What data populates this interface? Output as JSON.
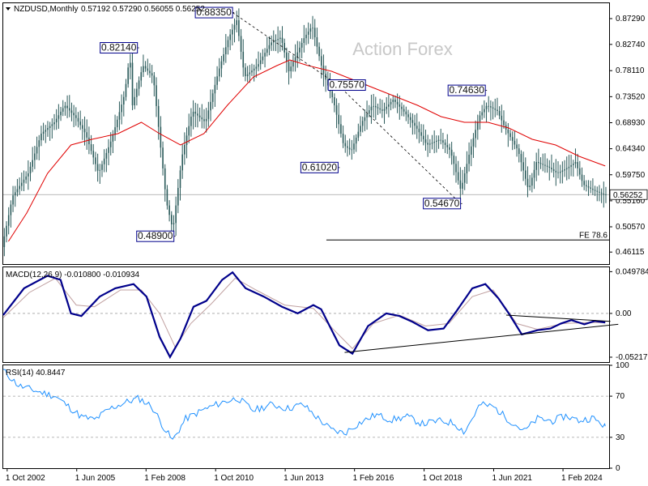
{
  "header": {
    "symbol_timeframe": "NZDUSD,Monthly",
    "ohlc": "0.57192 0.57290 0.56055 0.56252"
  },
  "watermark": "Action Forex",
  "colors": {
    "candle": "#2a5a5a",
    "ma": "#e00000",
    "macd": "#00008b",
    "signal": "#c0a0a0",
    "rsi": "#1e90ff",
    "trendline": "#000000",
    "grid": "#a0a0a0"
  },
  "chart_data": [
    {
      "type": "bar",
      "title": "NZDUSD,Monthly",
      "ylim": [
        0.44,
        0.9
      ],
      "y_ticks": [
        "0.87290",
        "0.82740",
        "0.78110",
        "0.73520",
        "0.68930",
        "0.64340",
        "0.59750",
        "0.55160",
        "0.50570",
        "0.46115"
      ],
      "y_tick_values": [
        0.8729,
        0.8274,
        0.7811,
        0.7352,
        0.6893,
        0.6434,
        0.5975,
        0.5516,
        0.5057,
        0.46115
      ],
      "x_ticks": [
        "1 Oct 2002",
        "1 Jun 2005",
        "1 Feb 2008",
        "1 Oct 2010",
        "1 Jun 2013",
        "1 Feb 2016",
        "1 Oct 2018",
        "1 Jun 2021",
        "1 Feb 2024"
      ],
      "x_tick_values": [
        2002.75,
        2005.42,
        2008.08,
        2010.75,
        2013.42,
        2016.08,
        2018.75,
        2021.42,
        2024.08
      ],
      "xlim": [
        2002.6,
        2025.85
      ],
      "price_path": [
        [
          2002.6,
          0.47
        ],
        [
          2003.0,
          0.56
        ],
        [
          2003.6,
          0.6
        ],
        [
          2004.1,
          0.67
        ],
        [
          2004.6,
          0.69
        ],
        [
          2005.0,
          0.72
        ],
        [
          2005.4,
          0.7
        ],
        [
          2005.8,
          0.67
        ],
        [
          2006.3,
          0.6
        ],
        [
          2006.8,
          0.66
        ],
        [
          2007.3,
          0.74
        ],
        [
          2007.5,
          0.81
        ],
        [
          2007.6,
          0.72
        ],
        [
          2008.0,
          0.79
        ],
        [
          2008.4,
          0.77
        ],
        [
          2008.9,
          0.55
        ],
        [
          2009.15,
          0.5
        ],
        [
          2009.5,
          0.63
        ],
        [
          2009.9,
          0.71
        ],
        [
          2010.4,
          0.69
        ],
        [
          2010.9,
          0.78
        ],
        [
          2011.3,
          0.84
        ],
        [
          2011.6,
          0.87
        ],
        [
          2011.9,
          0.77
        ],
        [
          2012.4,
          0.79
        ],
        [
          2012.9,
          0.83
        ],
        [
          2013.3,
          0.84
        ],
        [
          2013.6,
          0.78
        ],
        [
          2014.2,
          0.84
        ],
        [
          2014.5,
          0.86
        ],
        [
          2014.9,
          0.78
        ],
        [
          2015.3,
          0.73
        ],
        [
          2015.7,
          0.65
        ],
        [
          2016.0,
          0.64
        ],
        [
          2016.4,
          0.69
        ],
        [
          2016.8,
          0.72
        ],
        [
          2017.2,
          0.71
        ],
        [
          2017.6,
          0.73
        ],
        [
          2018.0,
          0.71
        ],
        [
          2018.5,
          0.68
        ],
        [
          2018.9,
          0.65
        ],
        [
          2019.4,
          0.66
        ],
        [
          2019.8,
          0.64
        ],
        [
          2020.2,
          0.57
        ],
        [
          2020.5,
          0.63
        ],
        [
          2020.9,
          0.7
        ],
        [
          2021.2,
          0.72
        ],
        [
          2021.6,
          0.71
        ],
        [
          2021.9,
          0.68
        ],
        [
          2022.4,
          0.64
        ],
        [
          2022.8,
          0.57
        ],
        [
          2023.1,
          0.62
        ],
        [
          2023.6,
          0.61
        ],
        [
          2023.9,
          0.6
        ],
        [
          2024.3,
          0.61
        ],
        [
          2024.6,
          0.62
        ],
        [
          2024.9,
          0.58
        ],
        [
          2025.3,
          0.57
        ],
        [
          2025.7,
          0.5625
        ]
      ],
      "ma_path": [
        [
          2002.8,
          0.48
        ],
        [
          2003.5,
          0.53
        ],
        [
          2004.3,
          0.6
        ],
        [
          2005.2,
          0.65
        ],
        [
          2006.0,
          0.66
        ],
        [
          2007.0,
          0.67
        ],
        [
          2007.9,
          0.69
        ],
        [
          2008.6,
          0.67
        ],
        [
          2009.4,
          0.65
        ],
        [
          2010.3,
          0.67
        ],
        [
          2011.2,
          0.72
        ],
        [
          2012.2,
          0.77
        ],
        [
          2013.1,
          0.79
        ],
        [
          2013.6,
          0.8
        ],
        [
          2014.3,
          0.79
        ],
        [
          2015.2,
          0.78
        ],
        [
          2016.3,
          0.76
        ],
        [
          2017.4,
          0.74
        ],
        [
          2018.5,
          0.72
        ],
        [
          2019.4,
          0.7
        ],
        [
          2020.3,
          0.69
        ],
        [
          2021.2,
          0.69
        ],
        [
          2022.0,
          0.68
        ],
        [
          2022.9,
          0.66
        ],
        [
          2023.8,
          0.65
        ],
        [
          2024.7,
          0.63
        ],
        [
          2025.7,
          0.613
        ]
      ],
      "annotations": [
        {
          "label": "0.82140",
          "value": 0.8214,
          "x": 2007.75
        },
        {
          "label": "0.88350",
          "value": 0.8835,
          "x": 2011.4
        },
        {
          "label": "0.48900",
          "value": 0.489,
          "x": 2009.15
        },
        {
          "label": "0.75570",
          "value": 0.7557,
          "x": 2016.5
        },
        {
          "label": "0.61020",
          "value": 0.6102,
          "x": 2015.45
        },
        {
          "label": "0.74630",
          "value": 0.7463,
          "x": 2021.1
        },
        {
          "label": "0.54670",
          "value": 0.5467,
          "x": 2020.15
        }
      ],
      "dotted_lines": [
        {
          "from": [
            2011.4,
            0.8835
          ],
          "to": [
            2015.45,
            0.7557
          ]
        },
        {
          "from": [
            2015.45,
            0.7557
          ],
          "to": [
            2020.15,
            0.5467
          ]
        }
      ],
      "current_price": {
        "label": "0.56252",
        "value": 0.56252
      },
      "fe_line": {
        "label": "FE 78.6",
        "value": 0.4825,
        "x_start": 2015.0
      }
    },
    {
      "type": "line",
      "title": "MACD(12,26,9) -0.010800 -0.010934",
      "ylim": [
        -0.058,
        0.055
      ],
      "y_ticks": [
        "0.049784",
        "0.00",
        "-0.052179"
      ],
      "y_tick_values": [
        0.049784,
        0.0,
        -0.052179
      ],
      "series": [
        {
          "role": "macd",
          "values": [
            [
              2002.6,
              -0.002
            ],
            [
              2003.4,
              0.03
            ],
            [
              2004.3,
              0.045
            ],
            [
              2004.8,
              0.04
            ],
            [
              2005.2,
              0.0
            ],
            [
              2005.6,
              -0.003
            ],
            [
              2006.3,
              0.02
            ],
            [
              2006.9,
              0.03
            ],
            [
              2007.6,
              0.035
            ],
            [
              2008.1,
              0.02
            ],
            [
              2008.6,
              -0.028
            ],
            [
              2009.0,
              -0.052
            ],
            [
              2009.4,
              -0.03
            ],
            [
              2009.9,
              0.008
            ],
            [
              2010.4,
              0.015
            ],
            [
              2011.0,
              0.04
            ],
            [
              2011.4,
              0.049
            ],
            [
              2011.9,
              0.03
            ],
            [
              2012.6,
              0.02
            ],
            [
              2013.3,
              0.008
            ],
            [
              2013.9,
              0.0
            ],
            [
              2014.5,
              0.01
            ],
            [
              2014.8,
              0.005
            ],
            [
              2015.5,
              -0.038
            ],
            [
              2016.0,
              -0.048
            ],
            [
              2016.6,
              -0.015
            ],
            [
              2017.3,
              0.0
            ],
            [
              2017.8,
              -0.003
            ],
            [
              2018.3,
              -0.01
            ],
            [
              2018.9,
              -0.02
            ],
            [
              2019.5,
              -0.018
            ],
            [
              2020.0,
              0.003
            ],
            [
              2020.6,
              0.03
            ],
            [
              2021.1,
              0.035
            ],
            [
              2021.6,
              0.018
            ],
            [
              2022.0,
              0.0
            ],
            [
              2022.5,
              -0.025
            ],
            [
              2023.1,
              -0.02
            ],
            [
              2023.6,
              -0.018
            ],
            [
              2024.0,
              -0.012
            ],
            [
              2024.4,
              -0.008
            ],
            [
              2024.9,
              -0.013
            ],
            [
              2025.3,
              -0.009
            ],
            [
              2025.7,
              -0.0108
            ]
          ]
        },
        {
          "role": "signal",
          "values": [
            [
              2002.6,
              -0.005
            ],
            [
              2003.6,
              0.025
            ],
            [
              2004.6,
              0.042
            ],
            [
              2005.4,
              0.01
            ],
            [
              2006.1,
              0.008
            ],
            [
              2007.1,
              0.028
            ],
            [
              2007.9,
              0.028
            ],
            [
              2008.6,
              0.0
            ],
            [
              2009.2,
              -0.04
            ],
            [
              2009.8,
              -0.012
            ],
            [
              2010.6,
              0.012
            ],
            [
              2011.5,
              0.042
            ],
            [
              2012.3,
              0.028
            ],
            [
              2013.4,
              0.01
            ],
            [
              2014.5,
              0.006
            ],
            [
              2015.3,
              -0.02
            ],
            [
              2016.0,
              -0.042
            ],
            [
              2016.8,
              -0.012
            ],
            [
              2017.8,
              -0.002
            ],
            [
              2018.8,
              -0.015
            ],
            [
              2019.7,
              -0.012
            ],
            [
              2020.6,
              0.02
            ],
            [
              2021.4,
              0.028
            ],
            [
              2022.3,
              -0.012
            ],
            [
              2023.1,
              -0.019
            ],
            [
              2024.1,
              -0.012
            ],
            [
              2025.0,
              -0.011
            ],
            [
              2025.7,
              -0.0109
            ]
          ]
        }
      ],
      "trendlines": [
        {
          "from": [
            2015.7,
            -0.0465
          ],
          "to": [
            2026.2,
            -0.013
          ]
        },
        {
          "from": [
            2021.9,
            -0.002
          ],
          "to": [
            2025.9,
            -0.0095
          ]
        }
      ]
    },
    {
      "type": "line",
      "title": "RSI(14) 40.8447",
      "ylim": [
        0,
        100
      ],
      "y_ticks": [
        "100",
        "70",
        "30",
        "0"
      ],
      "y_tick_values": [
        100,
        70,
        30,
        0
      ],
      "series": [
        {
          "role": "rsi",
          "values": [
            [
              2002.6,
              95
            ],
            [
              2003.2,
              80
            ],
            [
              2004.0,
              74
            ],
            [
              2004.6,
              70
            ],
            [
              2005.1,
              60
            ],
            [
              2005.6,
              50
            ],
            [
              2006.1,
              47
            ],
            [
              2006.7,
              58
            ],
            [
              2007.3,
              64
            ],
            [
              2007.8,
              68
            ],
            [
              2008.3,
              60
            ],
            [
              2008.8,
              38
            ],
            [
              2009.1,
              27
            ],
            [
              2009.6,
              48
            ],
            [
              2010.3,
              57
            ],
            [
              2011.0,
              64
            ],
            [
              2011.6,
              68
            ],
            [
              2012.2,
              56
            ],
            [
              2012.9,
              62
            ],
            [
              2013.5,
              58
            ],
            [
              2014.1,
              62
            ],
            [
              2014.7,
              48
            ],
            [
              2015.2,
              37
            ],
            [
              2015.7,
              34
            ],
            [
              2016.2,
              43
            ],
            [
              2016.9,
              52
            ],
            [
              2017.5,
              47
            ],
            [
              2018.1,
              50
            ],
            [
              2018.7,
              43
            ],
            [
              2019.3,
              46
            ],
            [
              2019.9,
              44
            ],
            [
              2020.3,
              35
            ],
            [
              2020.9,
              62
            ],
            [
              2021.4,
              60
            ],
            [
              2022.0,
              47
            ],
            [
              2022.6,
              36
            ],
            [
              2023.1,
              48
            ],
            [
              2023.7,
              46
            ],
            [
              2024.2,
              51
            ],
            [
              2024.7,
              46
            ],
            [
              2025.2,
              49
            ],
            [
              2025.7,
              40.8
            ]
          ]
        }
      ]
    }
  ]
}
